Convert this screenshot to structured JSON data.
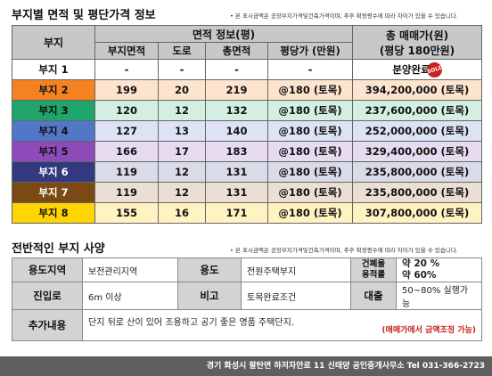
{
  "section1": {
    "title": "부지별 면적 및 평단가격 정보",
    "note": "• 본 표시금액은 공장부지가격및건축가격이며, 추후 확정평수에 따라 차이가 있을 수 있습니다."
  },
  "table": {
    "h_site": "부지",
    "h_area_info": "면적 정보(평)",
    "h_site_area": "부지면적",
    "h_road": "도로",
    "h_total_area": "총면적",
    "h_unit_price": "평당가 (만원)",
    "h_total_price_line1": "총 매매가(원)",
    "h_total_price_line2": "(평당 180만원)",
    "rows": [
      {
        "name": "부지 1",
        "area": "-",
        "road": "-",
        "total": "-",
        "unit": "-",
        "price": "분양완료",
        "badge": "SOLD",
        "bg": "#ffffff",
        "name_bg": "#ffffff",
        "name_color": "#111111"
      },
      {
        "name": "부지 2",
        "area": "199",
        "road": "20",
        "total": "219",
        "unit": "@180 (토목)",
        "price": "394,200,000 (토목)",
        "bg": "#fde4cf",
        "name_bg": "#f58220",
        "name_color": "#111111"
      },
      {
        "name": "부지 3",
        "area": "120",
        "road": "12",
        "total": "132",
        "unit": "@180 (토목)",
        "price": "237,600,000 (토목)",
        "bg": "#d3efe3",
        "name_bg": "#1fa46b",
        "name_color": "#111111"
      },
      {
        "name": "부지 4",
        "area": "127",
        "road": "13",
        "total": "140",
        "unit": "@180 (토목)",
        "price": "252,000,000 (토목)",
        "bg": "#dde3f4",
        "name_bg": "#5277c8",
        "name_color": "#111111"
      },
      {
        "name": "부지 5",
        "area": "166",
        "road": "17",
        "total": "183",
        "unit": "@180 (토목)",
        "price": "329,400,000 (토목)",
        "bg": "#e7dbf0",
        "name_bg": "#8d4ab8",
        "name_color": "#111111"
      },
      {
        "name": "부지 6",
        "area": "119",
        "road": "12",
        "total": "131",
        "unit": "@180 (토목)",
        "price": "235,800,000 (토목)",
        "bg": "#d9dbe9",
        "name_bg": "#33397e",
        "name_color": "#ffffff"
      },
      {
        "name": "부지 7",
        "area": "119",
        "road": "12",
        "total": "131",
        "unit": "@180 (토목)",
        "price": "235,800,000 (토목)",
        "bg": "#eadfd2",
        "name_bg": "#7b4a14",
        "name_color": "#ffffff"
      },
      {
        "name": "부지 8",
        "area": "155",
        "road": "16",
        "total": "171",
        "unit": "@180 (토목)",
        "price": "307,800,000 (토목)",
        "bg": "#fff3c2",
        "name_bg": "#ffd400",
        "name_color": "#111111"
      }
    ]
  },
  "section2": {
    "title": "전반적인 부지 사양",
    "note": "• 본 표시금액은 공장부지가격및건축가격이며, 추후 확정평수에 따라 차이가 있을 수 있습니다."
  },
  "spec": {
    "zone_label": "용도지역",
    "zone_value": "보전관리지역",
    "use_label": "용도",
    "use_value": "전원주택부지",
    "ratio_label_1": "건폐율",
    "ratio_label_2": "용적률",
    "ratio_value_1": "약 20 %",
    "ratio_value_2": "약 60%",
    "access_label": "진입로",
    "access_value": "6m 이상",
    "remark_label": "비고",
    "remark_value": "토목완료조건",
    "loan_label": "대출",
    "loan_value": "50~80% 실행가능",
    "extra_label": "추가내용",
    "extra_value": "단지 뒤로 산이 있어  조용하고 공기 좋은 명품 주택단지.",
    "extra_note": "(매매가에서 금액조정 가능)"
  },
  "footer": {
    "text": "경기 화성시 팔탄면 하저자안로 11   신태양 공인중개사무소   Tel 031-366-2723"
  },
  "colors": {
    "header_gray": "#c8c8c8",
    "footer_bg": "#5f5f5f",
    "accent_red": "#c9211e"
  }
}
